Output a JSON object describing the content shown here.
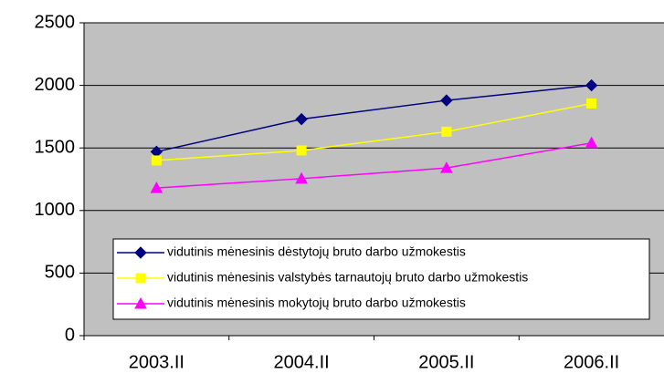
{
  "chart_data": {
    "type": "line",
    "categories": [
      "2003.II",
      "2004.II",
      "2005.II",
      "2006.II"
    ],
    "series": [
      {
        "name": "vidutinis mėnesinis dėstytojų bruto darbo užmokestis",
        "color": "#000080",
        "marker": "diamond",
        "values": [
          1470,
          1730,
          1880,
          2000
        ]
      },
      {
        "name": "vidutinis mėnesinis valstybės tarnautojų bruto darbo užmokestis",
        "color": "#FFFF00",
        "marker": "square",
        "values": [
          1400,
          1480,
          1630,
          1855
        ]
      },
      {
        "name": "vidutinis mėnesinis mokytojų bruto darbo užmokestis",
        "color": "#FF00FF",
        "marker": "triangle",
        "values": [
          1180,
          1255,
          1340,
          1540
        ]
      }
    ],
    "ylim": [
      0,
      2500
    ],
    "yticks": [
      0,
      500,
      1000,
      1500,
      2000,
      2500
    ],
    "grid": true,
    "legend": "bottom"
  }
}
